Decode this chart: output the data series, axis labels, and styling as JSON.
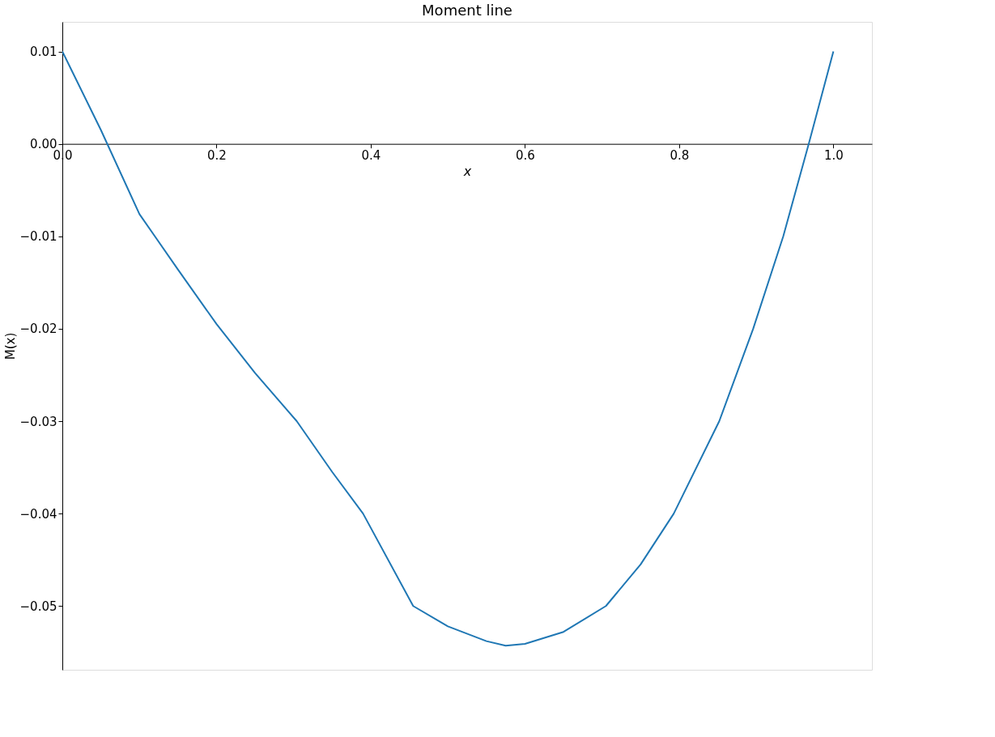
{
  "chart_data": {
    "type": "line",
    "title": "Moment line",
    "xlabel": "x",
    "ylabel": "M(x)",
    "x": [
      0,
      0.05,
      0.1,
      0.12,
      0.15,
      0.2,
      0.25,
      0.304,
      0.35,
      0.39,
      0.455,
      0.5,
      0.55,
      0.575,
      0.6,
      0.65,
      0.705,
      0.75,
      0.793,
      0.852,
      0.896,
      0.935,
      0.968,
      1.0
    ],
    "series": [
      {
        "color": "#1f77b4",
        "values": [
          0.01,
          0.0015,
          -0.0076,
          -0.01,
          -0.0136,
          -0.0195,
          -0.0248,
          -0.03,
          -0.0355,
          -0.04,
          -0.05,
          -0.0522,
          -0.0538,
          -0.0543,
          -0.0541,
          -0.0528,
          -0.05,
          -0.0455,
          -0.04,
          -0.03,
          -0.02,
          -0.01,
          0.0,
          0.01
        ]
      }
    ],
    "xlim": [
      0,
      1.05
    ],
    "ylim": [
      -0.0569,
      0.0132
    ],
    "xticks": [
      {
        "value": 0,
        "label": "0.0"
      },
      {
        "value": 0.2,
        "label": "0.2"
      },
      {
        "value": 0.4,
        "label": "0.4"
      },
      {
        "value": 0.6,
        "label": "0.6"
      },
      {
        "value": 0.8,
        "label": "0.8"
      },
      {
        "value": 1.0,
        "label": "1.0"
      }
    ],
    "yticks": [
      {
        "value": -0.05,
        "label": "−0.05"
      },
      {
        "value": -0.04,
        "label": "−0.04"
      },
      {
        "value": -0.03,
        "label": "−0.03"
      },
      {
        "value": -0.02,
        "label": "−0.02"
      },
      {
        "value": -0.01,
        "label": "−0.01"
      },
      {
        "value": 0,
        "label": "0.00"
      },
      {
        "value": 0.01,
        "label": "0.01"
      }
    ],
    "grid": false,
    "marker": "none",
    "line_style": "solid",
    "legend": false
  }
}
